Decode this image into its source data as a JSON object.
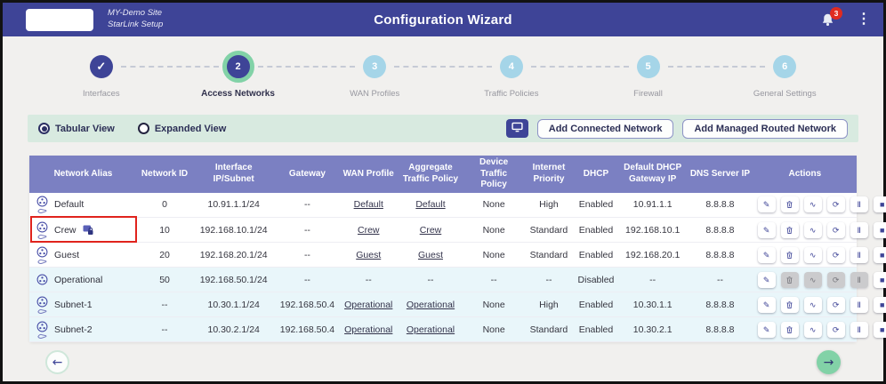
{
  "header": {
    "site_line1": "MY-Demo Site",
    "site_line2": "StarLink Setup",
    "title": "Configuration Wizard",
    "notification_count": "3"
  },
  "stepper": {
    "steps": [
      {
        "number": "1",
        "label": "Interfaces",
        "state": "completed"
      },
      {
        "number": "2",
        "label": "Access Networks",
        "state": "active"
      },
      {
        "number": "3",
        "label": "WAN Profiles",
        "state": "pending"
      },
      {
        "number": "4",
        "label": "Traffic Policies",
        "state": "pending"
      },
      {
        "number": "5",
        "label": "Firewall",
        "state": "pending"
      },
      {
        "number": "6",
        "label": "General Settings",
        "state": "pending"
      }
    ]
  },
  "toolbar": {
    "view_options": [
      {
        "label": "Tabular View",
        "selected": true
      },
      {
        "label": "Expanded View",
        "selected": false
      }
    ],
    "add_connected_label": "Add Connected Network",
    "add_managed_label": "Add Managed Routed Network"
  },
  "table": {
    "columns": [
      "Network Alias",
      "Network ID",
      "Interface IP/Subnet",
      "Gateway",
      "WAN Profile",
      "Aggregate Traffic Policy",
      "Device Traffic Policy",
      "Internet Priority",
      "DHCP",
      "Default DHCP Gateway IP",
      "DNS Server IP",
      "Actions"
    ],
    "action_icons": [
      {
        "id": "edit",
        "glyph": "✎"
      },
      {
        "id": "delete",
        "glyph": ""
      },
      {
        "id": "chart",
        "glyph": "∿"
      },
      {
        "id": "sync",
        "glyph": "⟳"
      },
      {
        "id": "pause",
        "glyph": "Ⅱ"
      },
      {
        "id": "stop",
        "glyph": "■"
      }
    ],
    "rows": [
      {
        "alias": "Default",
        "has_secondary_icon": true,
        "locked": false,
        "annotated": false,
        "tinted": false,
        "network_id": "0",
        "interface_ip": "10.91.1.1/24",
        "gateway": "--",
        "wan_profile": "Default",
        "aggregate_policy": "Default",
        "device_policy": "None",
        "internet_priority": "High",
        "dhcp": "Enabled",
        "dhcp_gateway": "10.91.1.1",
        "dns": "8.8.8.8",
        "actions_disabled": []
      },
      {
        "alias": "Crew",
        "has_secondary_icon": true,
        "locked": true,
        "annotated": true,
        "tinted": false,
        "network_id": "10",
        "interface_ip": "192.168.10.1/24",
        "gateway": "--",
        "wan_profile": "Crew",
        "aggregate_policy": "Crew",
        "device_policy": "None",
        "internet_priority": "Standard",
        "dhcp": "Enabled",
        "dhcp_gateway": "192.168.10.1",
        "dns": "8.8.8.8",
        "actions_disabled": []
      },
      {
        "alias": "Guest",
        "has_secondary_icon": true,
        "locked": false,
        "annotated": false,
        "tinted": false,
        "network_id": "20",
        "interface_ip": "192.168.20.1/24",
        "gateway": "--",
        "wan_profile": "Guest",
        "aggregate_policy": "Guest",
        "device_policy": "None",
        "internet_priority": "Standard",
        "dhcp": "Enabled",
        "dhcp_gateway": "192.168.20.1",
        "dns": "8.8.8.8",
        "actions_disabled": []
      },
      {
        "alias": "Operational",
        "has_secondary_icon": false,
        "locked": false,
        "annotated": false,
        "tinted": true,
        "network_id": "50",
        "interface_ip": "192.168.50.1/24",
        "gateway": "--",
        "wan_profile": "--",
        "aggregate_policy": "--",
        "device_policy": "--",
        "internet_priority": "--",
        "dhcp": "Disabled",
        "dhcp_gateway": "--",
        "dns": "--",
        "actions_disabled": [
          "delete",
          "chart",
          "sync",
          "pause"
        ]
      },
      {
        "alias": "Subnet-1",
        "has_secondary_icon": true,
        "locked": false,
        "annotated": false,
        "tinted": true,
        "network_id": "--",
        "interface_ip": "10.30.1.1/24",
        "gateway": "192.168.50.4",
        "wan_profile": "Operational",
        "aggregate_policy": "Operational",
        "device_policy": "None",
        "internet_priority": "High",
        "dhcp": "Enabled",
        "dhcp_gateway": "10.30.1.1",
        "dns": "8.8.8.8",
        "actions_disabled": []
      },
      {
        "alias": "Subnet-2",
        "has_secondary_icon": true,
        "locked": false,
        "annotated": false,
        "tinted": true,
        "network_id": "--",
        "interface_ip": "10.30.2.1/24",
        "gateway": "192.168.50.4",
        "wan_profile": "Operational",
        "aggregate_policy": "Operational",
        "device_policy": "None",
        "internet_priority": "Standard",
        "dhcp": "Enabled",
        "dhcp_gateway": "10.30.2.1",
        "dns": "8.8.8.8",
        "actions_disabled": []
      }
    ]
  },
  "icons": {
    "check": "✓",
    "kebab": "⋮",
    "arrow_left": "←",
    "arrow_right": "→"
  },
  "colors": {
    "accent": "#3e4497",
    "green": "#82d2a7",
    "table-header": "#7b80c2",
    "pending-blue": "#a5d5e8",
    "mint": "#d8eae0",
    "badge-red": "#e02b20",
    "annotation-red": "#e0231d"
  }
}
